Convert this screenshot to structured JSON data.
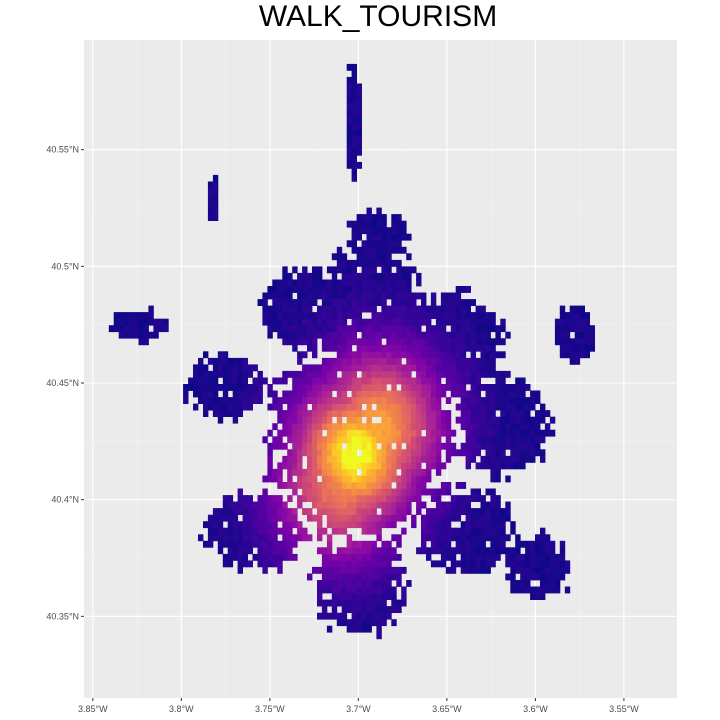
{
  "chart_data": {
    "type": "heatmap",
    "title": "WALK_TOURISM",
    "xlabel": "",
    "ylabel": "",
    "x_ticks": [
      {
        "label": "3.85°W",
        "value": -3.85
      },
      {
        "label": "3.8°W",
        "value": -3.8
      },
      {
        "label": "3.75°W",
        "value": -3.75
      },
      {
        "label": "3.7°W",
        "value": -3.7
      },
      {
        "label": "3.65°W",
        "value": -3.65
      },
      {
        "label": "3.6°W",
        "value": -3.6
      },
      {
        "label": "3.55°W",
        "value": -3.55
      }
    ],
    "y_ticks": [
      {
        "label": "40.35°N",
        "value": 40.35
      },
      {
        "label": "40.4°N",
        "value": 40.4
      },
      {
        "label": "40.45°N",
        "value": 40.45
      },
      {
        "label": "40.5°N",
        "value": 40.5
      },
      {
        "label": "40.55°N",
        "value": 40.55
      }
    ],
    "xlim": [
      -3.855,
      -3.52
    ],
    "ylim": [
      40.315,
      40.597
    ],
    "grid": true,
    "legend": "none",
    "colormap": "plasma",
    "colors": {
      "panel_background": "#EBEBEB",
      "grid_major": "#FFFFFF",
      "grid_minor": "#F4F4F4",
      "low": "#0D0887",
      "mid_low": "#6A00A8",
      "mid": "#B12A90",
      "mid_high": "#E16462",
      "high": "#FCA636",
      "max": "#F0F921"
    },
    "hotspots": [
      {
        "lon": -3.703,
        "lat": 40.418,
        "intensity": 1.0
      },
      {
        "lon": -3.69,
        "lat": 40.43,
        "intensity": 0.85
      },
      {
        "lon": -3.712,
        "lat": 40.405,
        "intensity": 0.75
      }
    ],
    "clusters": [
      {
        "name": "center",
        "lon": -3.7,
        "lat": 40.425,
        "rlon": 0.06,
        "rlat": 0.05
      },
      {
        "name": "north",
        "lon": -3.695,
        "lat": 40.48,
        "rlon": 0.038,
        "rlat": 0.03
      },
      {
        "name": "north-far",
        "lon": -3.692,
        "lat": 40.51,
        "rlon": 0.02,
        "rlat": 0.015
      },
      {
        "name": "northwest",
        "lon": -3.73,
        "lat": 40.48,
        "rlon": 0.03,
        "rlat": 0.02
      },
      {
        "name": "west",
        "lon": -3.777,
        "lat": 40.447,
        "rlon": 0.026,
        "rlat": 0.016
      },
      {
        "name": "far-west",
        "lon": -3.827,
        "lat": 40.473,
        "rlon": 0.02,
        "rlat": 0.008
      },
      {
        "name": "northeast",
        "lon": -3.65,
        "lat": 40.465,
        "rlon": 0.035,
        "rlat": 0.025
      },
      {
        "name": "east",
        "lon": -3.62,
        "lat": 40.43,
        "rlon": 0.03,
        "rlat": 0.025
      },
      {
        "name": "far-east",
        "lon": -3.58,
        "lat": 40.47,
        "rlon": 0.014,
        "rlat": 0.014
      },
      {
        "name": "southwest",
        "lon": -3.76,
        "lat": 40.385,
        "rlon": 0.033,
        "rlat": 0.02
      },
      {
        "name": "south",
        "lon": -3.7,
        "lat": 40.362,
        "rlon": 0.03,
        "rlat": 0.025
      },
      {
        "name": "southeast",
        "lon": -3.64,
        "lat": 40.385,
        "rlon": 0.03,
        "rlat": 0.022
      },
      {
        "name": "south-east-far",
        "lon": -3.6,
        "lat": 40.37,
        "rlon": 0.022,
        "rlat": 0.016
      },
      {
        "name": "north-spur",
        "lon": -3.704,
        "lat": 40.56,
        "rlon": 0.005,
        "rlat": 0.03
      },
      {
        "name": "nw-spur",
        "lon": -3.783,
        "lat": 40.527,
        "rlon": 0.004,
        "rlat": 0.012
      }
    ]
  }
}
